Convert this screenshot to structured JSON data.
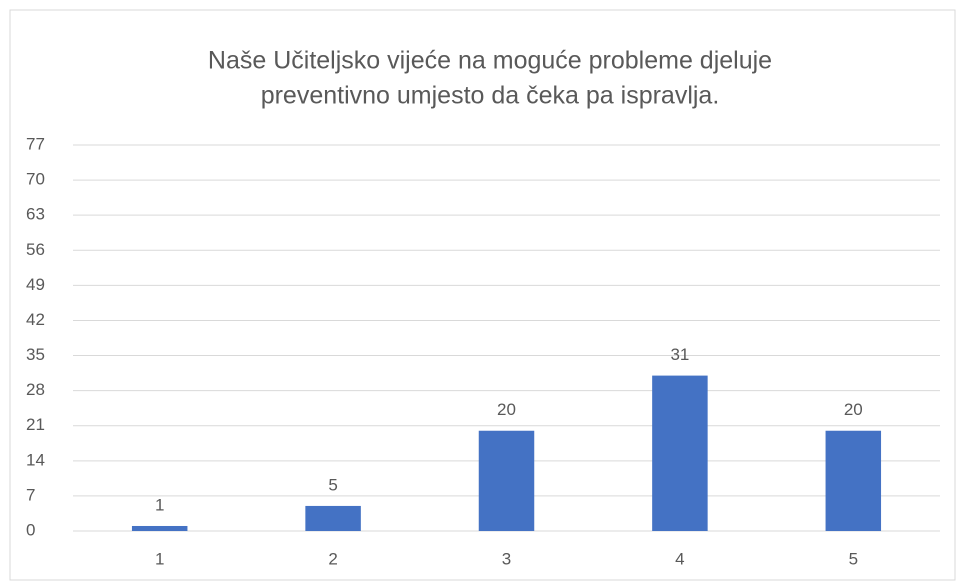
{
  "chart_data": {
    "type": "bar",
    "title": [
      "Naše Učiteljsko vijeće na moguće probleme djeluje",
      "preventivno umjesto da čeka pa ispravlja."
    ],
    "categories": [
      "1",
      "2",
      "3",
      "4",
      "5"
    ],
    "values": [
      1,
      5,
      20,
      31,
      20
    ],
    "color": "#4472c4",
    "ylim": [
      0,
      77
    ],
    "yticks": [
      0,
      7,
      14,
      21,
      28,
      35,
      42,
      49,
      56,
      63,
      70,
      77
    ],
    "grid": true,
    "data_labels": true
  }
}
